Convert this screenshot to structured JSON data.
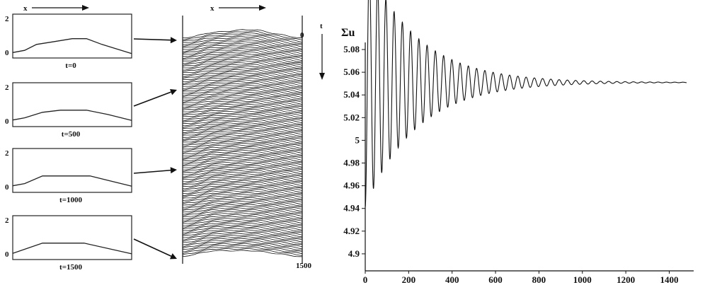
{
  "panels": {
    "x_label": "x",
    "t_label": "t",
    "yticks": [
      "2",
      "0"
    ],
    "profiles": [
      {
        "label": "t=0",
        "points": [
          [
            0,
            0.25
          ],
          [
            0.1,
            0.35
          ],
          [
            0.2,
            0.62
          ],
          [
            0.35,
            0.75
          ],
          [
            0.5,
            0.88
          ],
          [
            0.62,
            0.88
          ],
          [
            0.75,
            0.62
          ],
          [
            1.0,
            0.2
          ]
        ]
      },
      {
        "label": "t=500",
        "points": [
          [
            0,
            0.3
          ],
          [
            0.1,
            0.4
          ],
          [
            0.25,
            0.65
          ],
          [
            0.4,
            0.75
          ],
          [
            0.62,
            0.75
          ],
          [
            0.8,
            0.55
          ],
          [
            1.0,
            0.28
          ]
        ]
      },
      {
        "label": "t=1000",
        "points": [
          [
            0,
            0.3
          ],
          [
            0.1,
            0.4
          ],
          [
            0.25,
            0.75
          ],
          [
            0.65,
            0.75
          ],
          [
            1.0,
            0.28
          ]
        ]
      },
      {
        "label": "t=1500",
        "points": [
          [
            0,
            0.28
          ],
          [
            0.25,
            0.75
          ],
          [
            0.6,
            0.75
          ],
          [
            1.0,
            0.26
          ]
        ]
      }
    ],
    "spacetime": {
      "t_start": "0",
      "t_end": "1500"
    }
  },
  "chart_data": {
    "type": "line",
    "title": "",
    "xlabel": "",
    "ylabel": "Σu",
    "xlim": [
      0,
      1480
    ],
    "ylim": [
      4.885,
      5.085
    ],
    "xticks": [
      0,
      200,
      400,
      600,
      800,
      1000,
      1200,
      1400
    ],
    "yticks": [
      4.9,
      4.92,
      4.94,
      4.96,
      4.98,
      5,
      5.02,
      5.04,
      5.06,
      5.08
    ],
    "ytick_labels": [
      "4.9",
      "4.92",
      "4.94",
      "4.96",
      "4.98",
      "5",
      "5.02",
      "5.04",
      "5.06",
      "5.08"
    ],
    "equilibrium": 5.051,
    "initial_amplitude": 0.11,
    "decay_time": 235,
    "period": 38,
    "series": [
      {
        "x_range": [
          0,
          1480
        ]
      }
    ]
  },
  "colors": {
    "ink": "#111111",
    "background": "#ffffff"
  }
}
